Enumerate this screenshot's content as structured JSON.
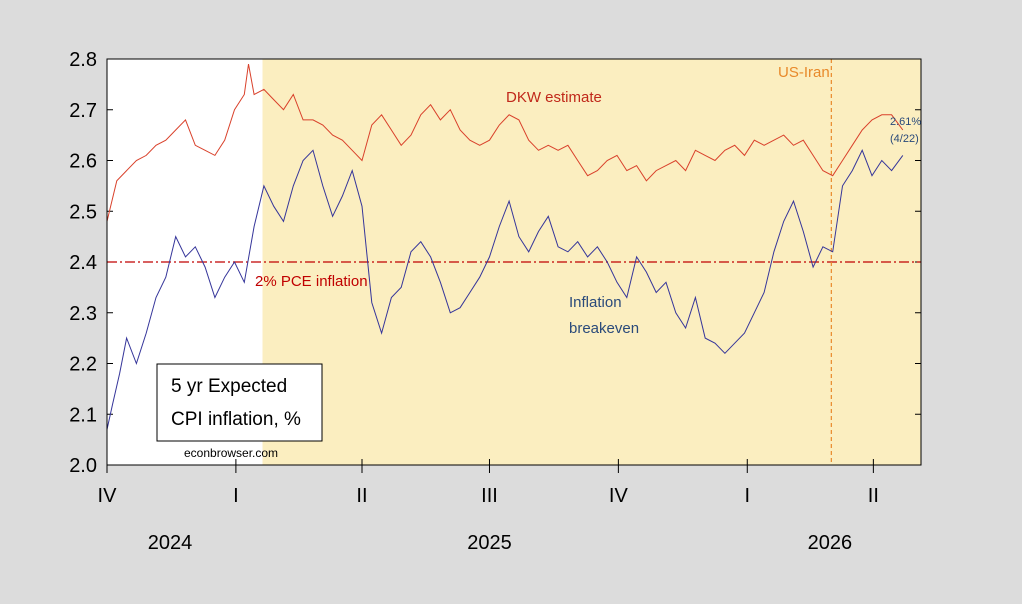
{
  "chart_data": {
    "type": "line",
    "ylim": [
      2.0,
      2.8
    ],
    "yticks": [
      "2.0",
      "2.1",
      "2.2",
      "2.3",
      "2.4",
      "2.5",
      "2.6",
      "2.7",
      "2.8"
    ],
    "xlim": [
      "2024-10-01",
      "2026-05-05"
    ],
    "quarter_ticks": [
      {
        "label": "IV",
        "date": "2024-10-01"
      },
      {
        "label": "I",
        "date": "2025-01-01"
      },
      {
        "label": "II",
        "date": "2025-04-01"
      },
      {
        "label": "III",
        "date": "2025-07-01"
      },
      {
        "label": "IV",
        "date": "2025-10-01"
      },
      {
        "label": "I",
        "date": "2026-01-01"
      },
      {
        "label": "II",
        "date": "2026-04-01"
      }
    ],
    "year_labels": [
      {
        "label": "2024",
        "date": "2024-11-15"
      },
      {
        "label": "2025",
        "date": "2025-07-01"
      },
      {
        "label": "2026",
        "date": "2026-03-01"
      }
    ],
    "shaded_region": {
      "start": "2025-01-20",
      "end": "2026-05-05",
      "color": "#fbeec0"
    },
    "reference_line": {
      "y": 2.4,
      "label": "2% PCE inflation",
      "color": "#c00000"
    },
    "event_line": {
      "date": "2026-03-02",
      "label": "US-Iran",
      "color": "#e8892a"
    },
    "series": [
      {
        "name": "DKW estimate",
        "color": "#d9412b",
        "points": [
          [
            "2024-10-01",
            2.48
          ],
          [
            "2024-10-08",
            2.56
          ],
          [
            "2024-10-15",
            2.58
          ],
          [
            "2024-10-22",
            2.6
          ],
          [
            "2024-10-29",
            2.61
          ],
          [
            "2024-11-05",
            2.63
          ],
          [
            "2024-11-12",
            2.64
          ],
          [
            "2024-11-19",
            2.66
          ],
          [
            "2024-11-26",
            2.68
          ],
          [
            "2024-12-03",
            2.63
          ],
          [
            "2024-12-10",
            2.62
          ],
          [
            "2024-12-17",
            2.61
          ],
          [
            "2024-12-24",
            2.64
          ],
          [
            "2024-12-31",
            2.7
          ],
          [
            "2025-01-07",
            2.73
          ],
          [
            "2025-01-10",
            2.79
          ],
          [
            "2025-01-14",
            2.73
          ],
          [
            "2025-01-21",
            2.74
          ],
          [
            "2025-01-28",
            2.72
          ],
          [
            "2025-02-04",
            2.7
          ],
          [
            "2025-02-11",
            2.73
          ],
          [
            "2025-02-18",
            2.68
          ],
          [
            "2025-02-25",
            2.68
          ],
          [
            "2025-03-04",
            2.67
          ],
          [
            "2025-03-11",
            2.65
          ],
          [
            "2025-03-18",
            2.64
          ],
          [
            "2025-03-25",
            2.62
          ],
          [
            "2025-04-01",
            2.6
          ],
          [
            "2025-04-08",
            2.67
          ],
          [
            "2025-04-15",
            2.69
          ],
          [
            "2025-04-22",
            2.66
          ],
          [
            "2025-04-29",
            2.63
          ],
          [
            "2025-05-06",
            2.65
          ],
          [
            "2025-05-13",
            2.69
          ],
          [
            "2025-05-20",
            2.71
          ],
          [
            "2025-05-27",
            2.68
          ],
          [
            "2025-06-03",
            2.7
          ],
          [
            "2025-06-10",
            2.66
          ],
          [
            "2025-06-17",
            2.64
          ],
          [
            "2025-06-24",
            2.63
          ],
          [
            "2025-07-01",
            2.64
          ],
          [
            "2025-07-08",
            2.67
          ],
          [
            "2025-07-15",
            2.69
          ],
          [
            "2025-07-22",
            2.68
          ],
          [
            "2025-07-29",
            2.64
          ],
          [
            "2025-08-05",
            2.62
          ],
          [
            "2025-08-12",
            2.63
          ],
          [
            "2025-08-19",
            2.62
          ],
          [
            "2025-08-26",
            2.63
          ],
          [
            "2025-09-02",
            2.6
          ],
          [
            "2025-09-09",
            2.57
          ],
          [
            "2025-09-16",
            2.58
          ],
          [
            "2025-09-23",
            2.6
          ],
          [
            "2025-09-30",
            2.61
          ],
          [
            "2025-10-07",
            2.58
          ],
          [
            "2025-10-14",
            2.59
          ],
          [
            "2025-10-21",
            2.56
          ],
          [
            "2025-10-28",
            2.58
          ],
          [
            "2025-11-04",
            2.59
          ],
          [
            "2025-11-11",
            2.6
          ],
          [
            "2025-11-18",
            2.58
          ],
          [
            "2025-11-25",
            2.62
          ],
          [
            "2025-12-02",
            2.61
          ],
          [
            "2025-12-09",
            2.6
          ],
          [
            "2025-12-16",
            2.62
          ],
          [
            "2025-12-23",
            2.63
          ],
          [
            "2025-12-30",
            2.61
          ],
          [
            "2026-01-06",
            2.64
          ],
          [
            "2026-01-13",
            2.63
          ],
          [
            "2026-01-20",
            2.64
          ],
          [
            "2026-01-27",
            2.65
          ],
          [
            "2026-02-03",
            2.63
          ],
          [
            "2026-02-10",
            2.64
          ],
          [
            "2026-02-17",
            2.61
          ],
          [
            "2026-02-24",
            2.58
          ],
          [
            "2026-03-03",
            2.57
          ],
          [
            "2026-03-10",
            2.6
          ],
          [
            "2026-03-17",
            2.63
          ],
          [
            "2026-03-24",
            2.66
          ],
          [
            "2026-03-31",
            2.68
          ],
          [
            "2026-04-07",
            2.69
          ],
          [
            "2026-04-14",
            2.69
          ],
          [
            "2026-04-22",
            2.66
          ]
        ]
      },
      {
        "name": "Inflation breakeven",
        "color": "#35359a",
        "points": [
          [
            "2024-10-01",
            2.07
          ],
          [
            "2024-10-05",
            2.12
          ],
          [
            "2024-10-10",
            2.18
          ],
          [
            "2024-10-15",
            2.25
          ],
          [
            "2024-10-22",
            2.2
          ],
          [
            "2024-10-29",
            2.26
          ],
          [
            "2024-11-05",
            2.33
          ],
          [
            "2024-11-12",
            2.37
          ],
          [
            "2024-11-19",
            2.45
          ],
          [
            "2024-11-26",
            2.41
          ],
          [
            "2024-12-03",
            2.43
          ],
          [
            "2024-12-10",
            2.39
          ],
          [
            "2024-12-17",
            2.33
          ],
          [
            "2024-12-24",
            2.37
          ],
          [
            "2024-12-31",
            2.4
          ],
          [
            "2025-01-07",
            2.36
          ],
          [
            "2025-01-14",
            2.47
          ],
          [
            "2025-01-21",
            2.55
          ],
          [
            "2025-01-28",
            2.51
          ],
          [
            "2025-02-04",
            2.48
          ],
          [
            "2025-02-11",
            2.55
          ],
          [
            "2025-02-18",
            2.6
          ],
          [
            "2025-02-25",
            2.62
          ],
          [
            "2025-03-04",
            2.55
          ],
          [
            "2025-03-11",
            2.49
          ],
          [
            "2025-03-18",
            2.53
          ],
          [
            "2025-03-25",
            2.58
          ],
          [
            "2025-04-01",
            2.51
          ],
          [
            "2025-04-08",
            2.32
          ],
          [
            "2025-04-15",
            2.26
          ],
          [
            "2025-04-22",
            2.33
          ],
          [
            "2025-04-29",
            2.35
          ],
          [
            "2025-05-06",
            2.42
          ],
          [
            "2025-05-13",
            2.44
          ],
          [
            "2025-05-20",
            2.41
          ],
          [
            "2025-05-27",
            2.36
          ],
          [
            "2025-06-03",
            2.3
          ],
          [
            "2025-06-10",
            2.31
          ],
          [
            "2025-06-17",
            2.34
          ],
          [
            "2025-06-24",
            2.37
          ],
          [
            "2025-07-01",
            2.41
          ],
          [
            "2025-07-08",
            2.47
          ],
          [
            "2025-07-15",
            2.52
          ],
          [
            "2025-07-22",
            2.45
          ],
          [
            "2025-07-29",
            2.42
          ],
          [
            "2025-08-05",
            2.46
          ],
          [
            "2025-08-12",
            2.49
          ],
          [
            "2025-08-19",
            2.43
          ],
          [
            "2025-08-26",
            2.42
          ],
          [
            "2025-09-02",
            2.44
          ],
          [
            "2025-09-09",
            2.41
          ],
          [
            "2025-09-16",
            2.43
          ],
          [
            "2025-09-23",
            2.4
          ],
          [
            "2025-09-30",
            2.36
          ],
          [
            "2025-10-07",
            2.33
          ],
          [
            "2025-10-14",
            2.41
          ],
          [
            "2025-10-21",
            2.38
          ],
          [
            "2025-10-28",
            2.34
          ],
          [
            "2025-11-04",
            2.36
          ],
          [
            "2025-11-11",
            2.3
          ],
          [
            "2025-11-18",
            2.27
          ],
          [
            "2025-11-25",
            2.33
          ],
          [
            "2025-12-02",
            2.25
          ],
          [
            "2025-12-09",
            2.24
          ],
          [
            "2025-12-16",
            2.22
          ],
          [
            "2025-12-23",
            2.24
          ],
          [
            "2025-12-30",
            2.26
          ],
          [
            "2026-01-06",
            2.3
          ],
          [
            "2026-01-13",
            2.34
          ],
          [
            "2026-01-20",
            2.42
          ],
          [
            "2026-01-27",
            2.48
          ],
          [
            "2026-02-03",
            2.52
          ],
          [
            "2026-02-10",
            2.46
          ],
          [
            "2026-02-17",
            2.39
          ],
          [
            "2026-02-24",
            2.43
          ],
          [
            "2026-03-03",
            2.42
          ],
          [
            "2026-03-10",
            2.55
          ],
          [
            "2026-03-17",
            2.58
          ],
          [
            "2026-03-24",
            2.62
          ],
          [
            "2026-03-31",
            2.57
          ],
          [
            "2026-04-07",
            2.6
          ],
          [
            "2026-04-14",
            2.58
          ],
          [
            "2026-04-22",
            2.61
          ]
        ]
      }
    ],
    "annotations": {
      "dkw_label": "DKW estimate",
      "breakeven_label_line1": "Inflation",
      "breakeven_label_line2": "breakeven",
      "latest_value": "2.61%",
      "latest_date": "(4/22)"
    },
    "legend_box": {
      "line1": "5 yr Expected",
      "line2": "CPI inflation, %"
    },
    "source": "econbrowser.com"
  }
}
